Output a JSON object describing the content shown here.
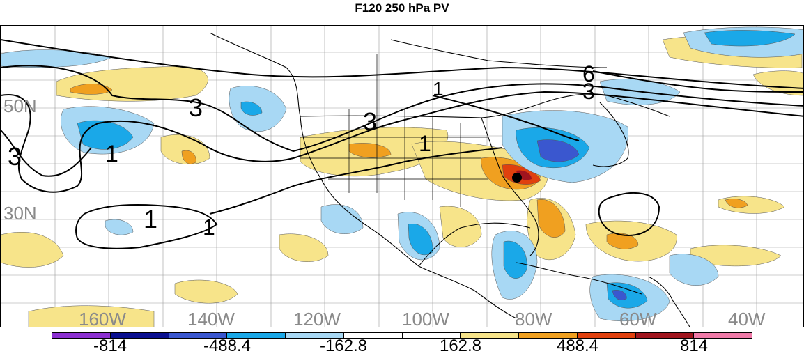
{
  "title": "F120 250 hPa PV",
  "latitude_labels": [
    "50N",
    "30N"
  ],
  "longitude_labels": [
    "160W",
    "140W",
    "120W",
    "100W",
    "80W",
    "60W",
    "40W"
  ],
  "contour_labels": [
    "3",
    "1",
    "3",
    "3",
    "1",
    "1",
    "1",
    "6",
    "3",
    "1"
  ],
  "colorbar": {
    "colors": [
      "#8b2fd0",
      "#0a0f8f",
      "#3a57cf",
      "#1aa8e8",
      "#a8d8f4",
      "#ffffff",
      "#ffffff",
      "#f7e48a",
      "#f0a020",
      "#e0400e",
      "#a0141e",
      "#f07aa8"
    ],
    "labels": [
      "-814",
      "-488.4",
      "-162.8",
      "162.8",
      "488.4",
      "814"
    ]
  }
}
